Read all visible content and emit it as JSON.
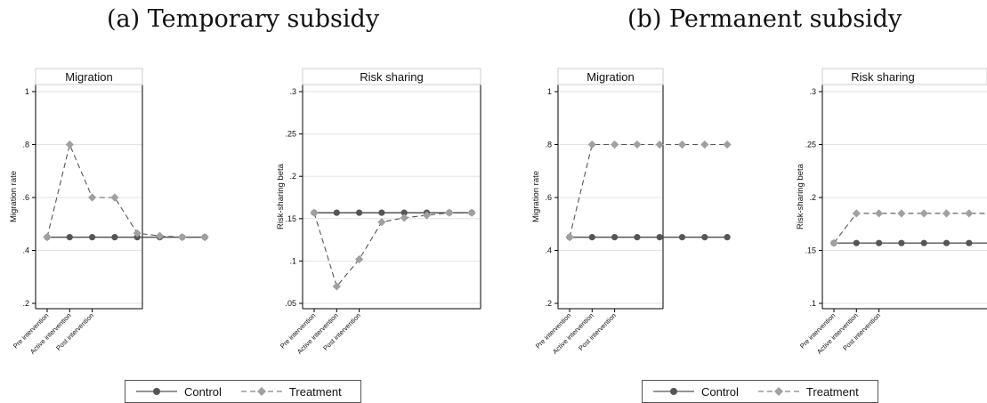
{
  "panels": [
    {
      "title": "(a) Temporary subsidy"
    },
    {
      "title": "(b) Permanent subsidy"
    }
  ],
  "legend": {
    "control": "Control",
    "treatment": "Treatment"
  },
  "colors": {
    "control": "#555555",
    "treatment": "#a0a0a0",
    "grid": "#e3e3e3",
    "axis": "#000000"
  },
  "chart_data": [
    {
      "type": "line",
      "panel": "(a) Temporary subsidy",
      "title": "Migration",
      "ylabel": "Migration rate",
      "xlabel": "",
      "ylim": [
        0.2,
        1.0
      ],
      "yticks": [
        0.2,
        0.4,
        0.6,
        0.8,
        1.0
      ],
      "ytick_labels": [
        ".2",
        ".4",
        ".6",
        ".8",
        "1"
      ],
      "x_tick_labels": [
        "Pre intervention",
        "Active intervention",
        "Post intervention"
      ],
      "grid": true,
      "series": [
        {
          "name": "Control",
          "style": "solid",
          "marker": "circle",
          "values": [
            0.45,
            0.45,
            0.45,
            0.45,
            0.45,
            0.45,
            0.45,
            0.45
          ]
        },
        {
          "name": "Treatment",
          "style": "dashed",
          "marker": "diamond",
          "values": [
            0.45,
            0.8,
            0.6,
            0.6,
            0.465,
            0.455,
            0.45,
            0.45
          ]
        }
      ]
    },
    {
      "type": "line",
      "panel": "(a) Temporary subsidy",
      "title": "Risk sharing",
      "ylabel": "Risk-sharing beta",
      "xlabel": "",
      "ylim": [
        0.05,
        0.3
      ],
      "yticks": [
        0.05,
        0.1,
        0.15,
        0.2,
        0.25,
        0.3
      ],
      "ytick_labels": [
        ".05",
        ".1",
        ".15",
        ".2",
        ".25",
        ".3"
      ],
      "x_tick_labels": [
        "Pre intervention",
        "Active intervention",
        "Post intervention"
      ],
      "grid": true,
      "series": [
        {
          "name": "Control",
          "style": "solid",
          "marker": "circle",
          "values": [
            0.157,
            0.157,
            0.157,
            0.157,
            0.157,
            0.157,
            0.157,
            0.157
          ]
        },
        {
          "name": "Treatment",
          "style": "dashed",
          "marker": "diamond",
          "values": [
            0.157,
            0.07,
            0.102,
            0.146,
            0.151,
            0.154,
            0.157,
            0.157
          ]
        }
      ]
    },
    {
      "type": "line",
      "panel": "(b) Permanent subsidy",
      "title": "Migration",
      "ylabel": "Migration rate",
      "xlabel": "",
      "ylim": [
        0.2,
        1.0
      ],
      "yticks": [
        0.2,
        0.4,
        0.6,
        0.8,
        1.0
      ],
      "ytick_labels": [
        ".2",
        ".4",
        ".6",
        ".8",
        "1"
      ],
      "x_tick_labels": [
        "Pre intervention",
        "Active intervention",
        "Post intervention"
      ],
      "grid": true,
      "series": [
        {
          "name": "Control",
          "style": "solid",
          "marker": "circle",
          "values": [
            0.45,
            0.45,
            0.45,
            0.45,
            0.45,
            0.45,
            0.45,
            0.45
          ]
        },
        {
          "name": "Treatment",
          "style": "dashed",
          "marker": "diamond",
          "values": [
            0.45,
            0.8,
            0.8,
            0.8,
            0.8,
            0.8,
            0.8,
            0.8
          ]
        }
      ]
    },
    {
      "type": "line",
      "panel": "(b) Permanent subsidy",
      "title": "Risk sharing",
      "ylabel": "Risk-sharing beta",
      "xlabel": "",
      "ylim": [
        0.1,
        0.3
      ],
      "yticks": [
        0.1,
        0.15,
        0.2,
        0.25,
        0.3
      ],
      "ytick_labels": [
        ".1",
        ".15",
        ".2",
        ".25",
        ".3"
      ],
      "x_tick_labels": [
        "Pre intervention",
        "Active intervention",
        "Post intervention"
      ],
      "grid": true,
      "series": [
        {
          "name": "Control",
          "style": "solid",
          "marker": "circle",
          "values": [
            0.157,
            0.157,
            0.157,
            0.157,
            0.157,
            0.157,
            0.157,
            0.157
          ]
        },
        {
          "name": "Treatment",
          "style": "dashed",
          "marker": "diamond",
          "values": [
            0.157,
            0.185,
            0.185,
            0.185,
            0.185,
            0.185,
            0.185,
            0.185
          ]
        }
      ]
    }
  ]
}
